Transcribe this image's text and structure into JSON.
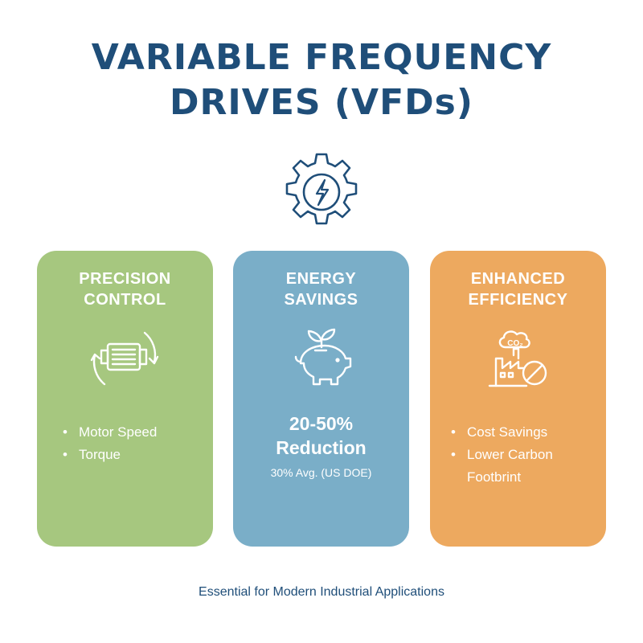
{
  "title": {
    "line1": "VARIABLE FREQUENCY",
    "line2": "DRIVES (VFDs)"
  },
  "hero_icon": "gear-lightning-icon",
  "colors": {
    "primary": "#1f4e79",
    "green": "#a6c77f",
    "blue": "#7aaec8",
    "orange": "#eda95f"
  },
  "cards": [
    {
      "title_line1": "PRECISION",
      "title_line2": "CONTROL",
      "icon": "motor-rotation-icon",
      "bullets": [
        "Motor Speed",
        "Torque"
      ]
    },
    {
      "title_line1": "ENERGY",
      "title_line2": "SAVINGS",
      "icon": "piggy-bank-sprout-icon",
      "stat_line1": "20-50%",
      "stat_line2": "Reduction",
      "note": "30% Avg. (US DOE)"
    },
    {
      "title_line1": "ENHANCED",
      "title_line2": "EFFICIENCY",
      "icon": "factory-co2-icon",
      "co2_label": "CO₂",
      "bullets": [
        "Cost Savings",
        "Lower Carbon",
        "Footbrint"
      ]
    }
  ],
  "footer": "Essential for Modern Industrial Applications"
}
